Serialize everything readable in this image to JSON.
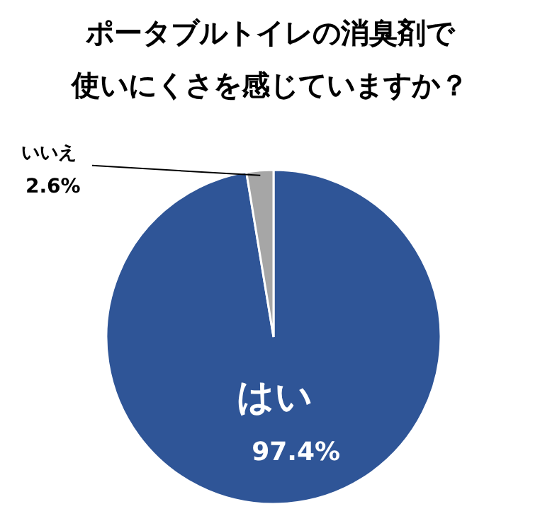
{
  "chart_data": {
    "type": "pie",
    "title": "ポータブルトイレの消臭剤で",
    "subtitle": "使いにくさを感じていますか？",
    "categories": [
      "はい",
      "いいえ"
    ],
    "values": [
      97.4,
      2.6
    ],
    "value_labels": [
      "97.4%",
      "2.6%"
    ],
    "colors": [
      "#2f5597",
      "#a6a6a6"
    ]
  }
}
